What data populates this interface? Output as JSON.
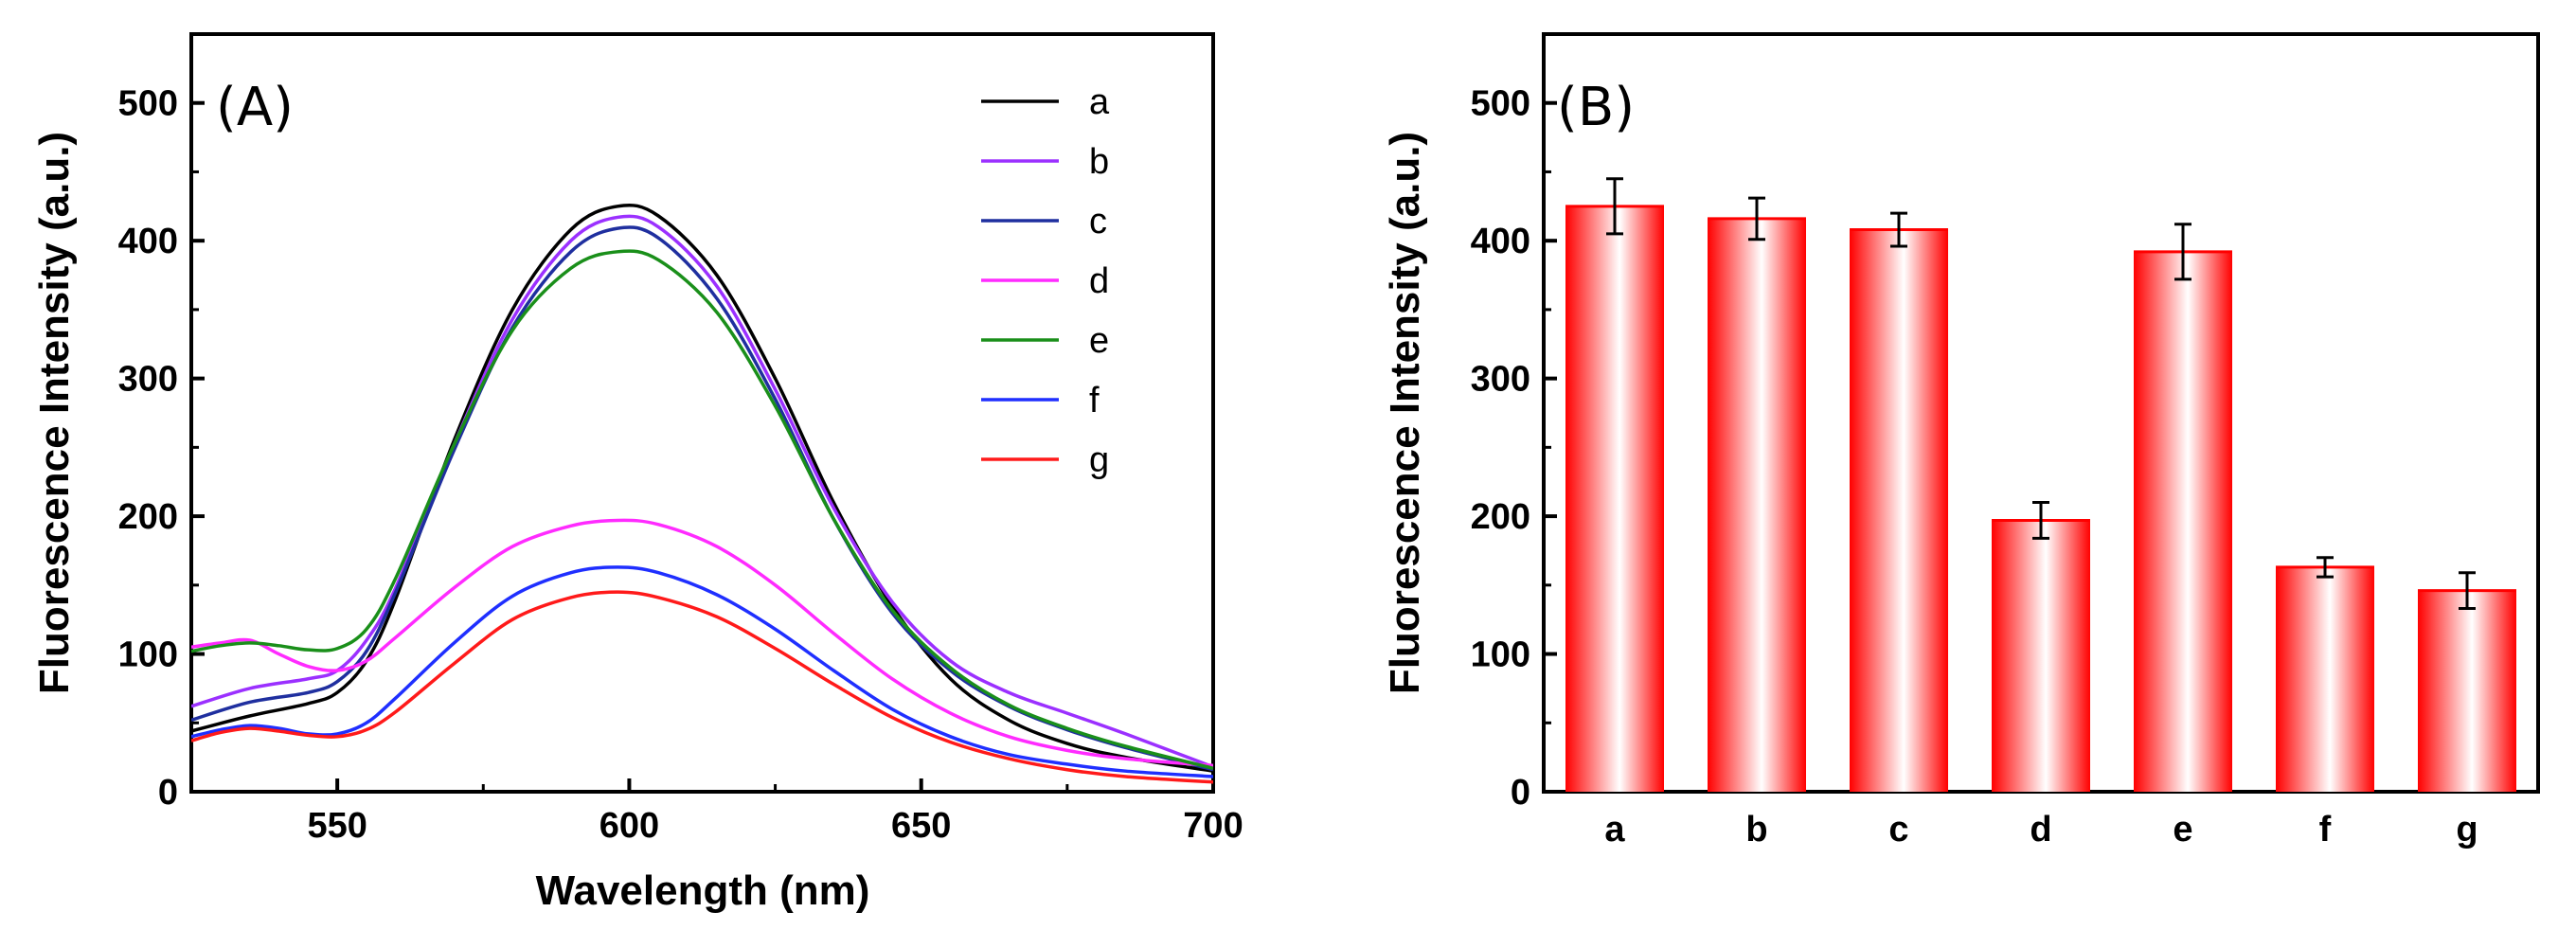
{
  "chart_data": [
    {
      "type": "line",
      "panel_label": "(A)",
      "xlabel": "Wavelength (nm)",
      "ylabel": "Fluorescence Intensity (a.u.)",
      "xlim": [
        525,
        700
      ],
      "ylim": [
        0,
        550
      ],
      "xticks": [
        550,
        600,
        650,
        700
      ],
      "yticks": [
        0,
        100,
        200,
        300,
        400,
        500
      ],
      "legend_position": "top-right",
      "series": [
        {
          "name": "a",
          "color": "#000000",
          "points": [
            [
              525,
              44
            ],
            [
              535,
              55
            ],
            [
              545,
              64
            ],
            [
              550,
              72
            ],
            [
              555,
              95
            ],
            [
              560,
              140
            ],
            [
              570,
              255
            ],
            [
              580,
              350
            ],
            [
              590,
              408
            ],
            [
              598,
              425
            ],
            [
              605,
              418
            ],
            [
              615,
              375
            ],
            [
              625,
              300
            ],
            [
              635,
              210
            ],
            [
              645,
              135
            ],
            [
              655,
              82
            ],
            [
              665,
              52
            ],
            [
              675,
              35
            ],
            [
              685,
              25
            ],
            [
              700,
              15
            ]
          ]
        },
        {
          "name": "b",
          "color": "#9b30ff",
          "points": [
            [
              525,
              62
            ],
            [
              535,
              75
            ],
            [
              545,
              82
            ],
            [
              550,
              88
            ],
            [
              555,
              110
            ],
            [
              560,
              148
            ],
            [
              570,
              252
            ],
            [
              580,
              343
            ],
            [
              590,
              400
            ],
            [
              598,
              417
            ],
            [
              605,
              410
            ],
            [
              615,
              367
            ],
            [
              625,
              292
            ],
            [
              635,
              206
            ],
            [
              645,
              138
            ],
            [
              655,
              95
            ],
            [
              665,
              72
            ],
            [
              675,
              57
            ],
            [
              685,
              42
            ],
            [
              700,
              18
            ]
          ]
        },
        {
          "name": "c",
          "color": "#1f2f9f",
          "points": [
            [
              525,
              52
            ],
            [
              535,
              65
            ],
            [
              545,
              72
            ],
            [
              550,
              80
            ],
            [
              555,
              102
            ],
            [
              560,
              145
            ],
            [
              570,
              248
            ],
            [
              580,
              337
            ],
            [
              590,
              392
            ],
            [
              598,
              409
            ],
            [
              605,
              402
            ],
            [
              615,
              358
            ],
            [
              625,
              285
            ],
            [
              635,
              198
            ],
            [
              645,
              130
            ],
            [
              655,
              88
            ],
            [
              665,
              62
            ],
            [
              675,
              45
            ],
            [
              685,
              32
            ],
            [
              700,
              16
            ]
          ]
        },
        {
          "name": "d",
          "color": "#ff2bff",
          "points": [
            [
              525,
              105
            ],
            [
              530,
              108
            ],
            [
              535,
              110
            ],
            [
              540,
              100
            ],
            [
              545,
              91
            ],
            [
              550,
              88
            ],
            [
              555,
              95
            ],
            [
              560,
              112
            ],
            [
              570,
              148
            ],
            [
              580,
              178
            ],
            [
              590,
              193
            ],
            [
              598,
              197
            ],
            [
              605,
              194
            ],
            [
              615,
              178
            ],
            [
              625,
              150
            ],
            [
              635,
              115
            ],
            [
              645,
              82
            ],
            [
              655,
              57
            ],
            [
              665,
              40
            ],
            [
              675,
              30
            ],
            [
              685,
              24
            ],
            [
              700,
              19
            ]
          ]
        },
        {
          "name": "e",
          "color": "#1a8f1a",
          "points": [
            [
              525,
              102
            ],
            [
              530,
              106
            ],
            [
              535,
              108
            ],
            [
              540,
              106
            ],
            [
              545,
              103
            ],
            [
              550,
              104
            ],
            [
              555,
              118
            ],
            [
              560,
              155
            ],
            [
              570,
              252
            ],
            [
              580,
              335
            ],
            [
              590,
              380
            ],
            [
              598,
              392
            ],
            [
              605,
              386
            ],
            [
              615,
              348
            ],
            [
              625,
              280
            ],
            [
              635,
              198
            ],
            [
              645,
              132
            ],
            [
              655,
              90
            ],
            [
              665,
              63
            ],
            [
              675,
              46
            ],
            [
              685,
              33
            ],
            [
              700,
              17
            ]
          ]
        },
        {
          "name": "f",
          "color": "#1f2fff",
          "points": [
            [
              525,
              40
            ],
            [
              530,
              45
            ],
            [
              535,
              48
            ],
            [
              540,
              46
            ],
            [
              545,
              42
            ],
            [
              550,
              42
            ],
            [
              555,
              50
            ],
            [
              560,
              68
            ],
            [
              570,
              108
            ],
            [
              580,
              142
            ],
            [
              590,
              159
            ],
            [
              598,
              163
            ],
            [
              605,
              159
            ],
            [
              615,
              143
            ],
            [
              625,
              118
            ],
            [
              635,
              88
            ],
            [
              645,
              60
            ],
            [
              655,
              40
            ],
            [
              665,
              27
            ],
            [
              675,
              20
            ],
            [
              685,
              15
            ],
            [
              700,
              11
            ]
          ]
        },
        {
          "name": "g",
          "color": "#ff1a1a",
          "points": [
            [
              525,
              37
            ],
            [
              530,
              43
            ],
            [
              535,
              46
            ],
            [
              540,
              44
            ],
            [
              545,
              41
            ],
            [
              550,
              40
            ],
            [
              555,
              45
            ],
            [
              560,
              58
            ],
            [
              570,
              93
            ],
            [
              580,
              125
            ],
            [
              590,
              141
            ],
            [
              598,
              145
            ],
            [
              605,
              141
            ],
            [
              615,
              127
            ],
            [
              625,
              104
            ],
            [
              635,
              78
            ],
            [
              645,
              54
            ],
            [
              655,
              36
            ],
            [
              665,
              24
            ],
            [
              675,
              16
            ],
            [
              685,
              11
            ],
            [
              700,
              7
            ]
          ]
        }
      ]
    },
    {
      "type": "bar",
      "panel_label": "(B)",
      "xlabel": "",
      "ylabel": "Fluorescence Intensity (a.u.)",
      "ylim": [
        0,
        550
      ],
      "yticks": [
        0,
        100,
        200,
        300,
        400,
        500
      ],
      "categories": [
        "a",
        "b",
        "c",
        "d",
        "e",
        "f",
        "g"
      ],
      "values": [
        425,
        416,
        408,
        197,
        392,
        163,
        146
      ],
      "errors": [
        20,
        15,
        12,
        13,
        20,
        7,
        13
      ],
      "bar_color": "#ff0000"
    }
  ]
}
